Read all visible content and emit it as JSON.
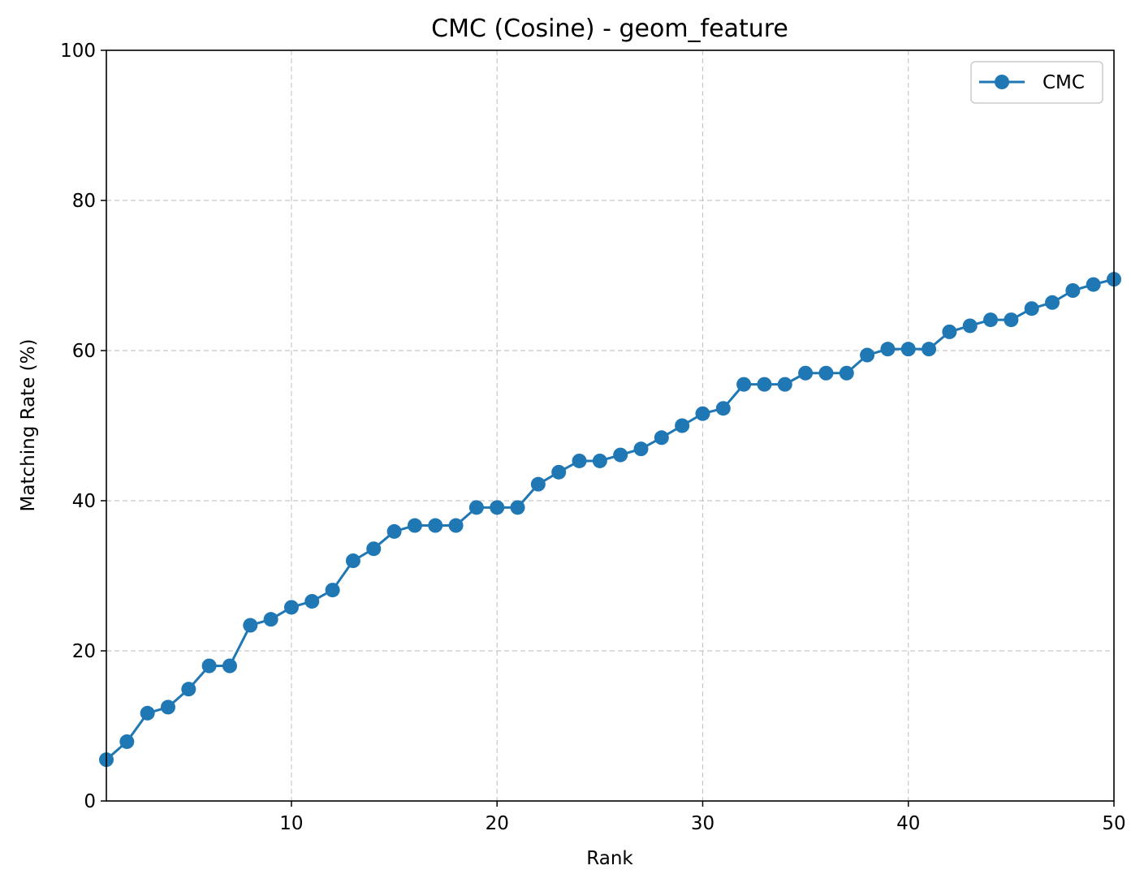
{
  "chart_data": {
    "type": "line",
    "title": "CMC (Cosine) - geom_feature",
    "xlabel": "Rank",
    "ylabel": "Matching Rate (%)",
    "xlim": [
      1,
      50
    ],
    "ylim": [
      0,
      100
    ],
    "xticks": [
      10,
      20,
      30,
      40,
      50
    ],
    "yticks": [
      0,
      20,
      40,
      60,
      80,
      100
    ],
    "grid": true,
    "legend_position": "top-right",
    "series": [
      {
        "name": "CMC",
        "color": "#1f77b4",
        "marker": "circle",
        "x": [
          1,
          2,
          3,
          4,
          5,
          6,
          7,
          8,
          9,
          10,
          11,
          12,
          13,
          14,
          15,
          16,
          17,
          18,
          19,
          20,
          21,
          22,
          23,
          24,
          25,
          26,
          27,
          28,
          29,
          30,
          31,
          32,
          33,
          34,
          35,
          36,
          37,
          38,
          39,
          40,
          41,
          42,
          43,
          44,
          45,
          46,
          47,
          48,
          49,
          50
        ],
        "values": [
          5.5,
          7.9,
          11.7,
          12.5,
          14.9,
          18.0,
          18.0,
          23.4,
          24.2,
          25.8,
          26.6,
          28.1,
          32.0,
          33.6,
          35.9,
          36.7,
          36.7,
          36.7,
          39.1,
          39.1,
          39.1,
          42.2,
          43.8,
          45.3,
          45.3,
          46.1,
          46.9,
          48.4,
          50.0,
          51.6,
          52.3,
          55.5,
          55.5,
          55.5,
          57.0,
          57.0,
          57.0,
          59.4,
          60.2,
          60.2,
          60.2,
          62.5,
          63.3,
          64.1,
          64.1,
          65.6,
          66.4,
          68.0,
          68.8,
          69.5
        ]
      }
    ]
  }
}
